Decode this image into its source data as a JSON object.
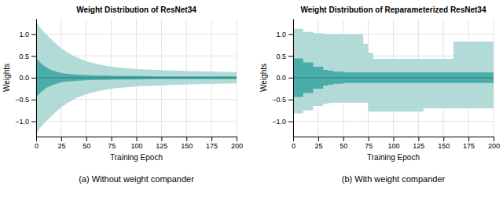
{
  "chart_data": [
    {
      "type": "area",
      "title": "Weight Distribution of ResNet34",
      "x_label": "Training Epoch",
      "y_label": "Weights",
      "annotations": [
        "(a) Without weight compander"
      ],
      "xlim": [
        0,
        200
      ],
      "ylim": [
        -1.35,
        1.35
      ],
      "xticks": [
        0,
        25,
        50,
        75,
        100,
        125,
        150,
        175,
        200
      ],
      "yticks": [
        {
          "value": -1.0,
          "label": "−1.0"
        },
        {
          "value": -0.5,
          "label": "−0.5"
        },
        {
          "value": 0.0,
          "label": "0.0"
        },
        0.5,
        {
          "value": 1.0,
          "label": "1.0"
        }
      ],
      "grid": true,
      "x": [
        0,
        1,
        2,
        3,
        5,
        7,
        10,
        13,
        17,
        20,
        25,
        30,
        35,
        40,
        50,
        60,
        70,
        80,
        90,
        100,
        120,
        140,
        160,
        180,
        200
      ],
      "series": [
        {
          "type": "area",
          "color": "#b2dbd8",
          "values": [
            1.28,
            1.25,
            1.22,
            1.18,
            1.12,
            1.07,
            1.0,
            0.93,
            0.84,
            0.78,
            0.68,
            0.6,
            0.53,
            0.47,
            0.38,
            0.32,
            0.27,
            0.24,
            0.22,
            0.2,
            0.18,
            0.16,
            0.15,
            0.14,
            0.13
          ],
          "lower": [
            -1.28,
            -1.25,
            -1.22,
            -1.18,
            -1.12,
            -1.07,
            -1.0,
            -0.93,
            -0.84,
            -0.78,
            -0.68,
            -0.6,
            -0.53,
            -0.47,
            -0.38,
            -0.32,
            -0.27,
            -0.24,
            -0.22,
            -0.2,
            -0.18,
            -0.16,
            -0.15,
            -0.14,
            -0.13
          ]
        },
        {
          "type": "area",
          "color": "#4aadaa",
          "values": [
            0.44,
            0.42,
            0.4,
            0.37,
            0.33,
            0.29,
            0.24,
            0.2,
            0.16,
            0.14,
            0.11,
            0.09,
            0.08,
            0.07,
            0.06,
            0.05,
            0.05,
            0.04,
            0.04,
            0.04,
            0.03,
            0.03,
            0.03,
            0.03,
            0.03
          ],
          "lower": [
            -0.44,
            -0.42,
            -0.4,
            -0.37,
            -0.33,
            -0.29,
            -0.24,
            -0.2,
            -0.16,
            -0.14,
            -0.11,
            -0.09,
            -0.08,
            -0.07,
            -0.06,
            -0.05,
            -0.05,
            -0.04,
            -0.04,
            -0.04,
            -0.03,
            -0.03,
            -0.03,
            -0.03,
            -0.03
          ]
        },
        {
          "type": "line",
          "color": "#2a7a78",
          "values": [
            0.0,
            0.0,
            0.0,
            0.0,
            0.0,
            0.0,
            0.0,
            0.0,
            0.0,
            0.0,
            0.0,
            0.0,
            0.0,
            0.0,
            0.0,
            0.0,
            0.0,
            0.0,
            0.0,
            0.0,
            0.0,
            0.0,
            0.0,
            0.0,
            0.0
          ]
        }
      ]
    },
    {
      "type": "area",
      "title": "Weight Distribution of Reparameterized ResNet34",
      "x_label": "Training Epoch",
      "y_label": "Weights",
      "annotations": [
        "(b) With weight compander"
      ],
      "xlim": [
        0,
        200
      ],
      "ylim": [
        -1.35,
        1.35
      ],
      "xticks": [
        0,
        25,
        50,
        75,
        100,
        125,
        150,
        175,
        200
      ],
      "yticks": [
        {
          "value": -1.0,
          "label": "−1.0"
        },
        {
          "value": -0.5,
          "label": "−0.5"
        },
        {
          "value": 0.0,
          "label": "0.0"
        },
        0.5,
        {
          "value": 1.0,
          "label": "1.0"
        }
      ],
      "grid": true,
      "line_style": "steps",
      "x": [
        0,
        10,
        20,
        30,
        35,
        40,
        50,
        55,
        60,
        70,
        75,
        80,
        90,
        100,
        110,
        120,
        125,
        130,
        140,
        150,
        155,
        160,
        170,
        180,
        190,
        200
      ],
      "series": [
        {
          "type": "area",
          "color": "#b2dbd8",
          "values": [
            1.12,
            1.05,
            1.02,
            1.0,
            1.0,
            1.0,
            1.0,
            1.0,
            1.0,
            0.78,
            0.57,
            0.43,
            0.43,
            0.43,
            0.43,
            0.43,
            0.43,
            0.43,
            0.43,
            0.43,
            0.43,
            0.83,
            0.83,
            0.83,
            0.83,
            0.83
          ],
          "lower": [
            -0.82,
            -0.75,
            -0.65,
            -0.6,
            -0.58,
            -0.57,
            -0.57,
            -0.57,
            -0.57,
            -0.57,
            -0.78,
            -0.78,
            -0.78,
            -0.78,
            -0.78,
            -0.78,
            -0.78,
            -0.7,
            -0.7,
            -0.7,
            -0.7,
            -0.7,
            -0.7,
            -0.7,
            -0.7,
            -0.7
          ]
        },
        {
          "type": "area",
          "color": "#4aadaa",
          "values": [
            0.44,
            0.35,
            0.25,
            0.18,
            0.16,
            0.14,
            0.12,
            0.12,
            0.12,
            0.12,
            0.12,
            0.12,
            0.12,
            0.12,
            0.12,
            0.12,
            0.12,
            0.12,
            0.12,
            0.12,
            0.12,
            0.12,
            0.12,
            0.12,
            0.12,
            0.12
          ],
          "lower": [
            -0.44,
            -0.35,
            -0.25,
            -0.18,
            -0.16,
            -0.14,
            -0.12,
            -0.12,
            -0.12,
            -0.12,
            -0.12,
            -0.12,
            -0.12,
            -0.12,
            -0.12,
            -0.12,
            -0.12,
            -0.12,
            -0.12,
            -0.12,
            -0.12,
            -0.12,
            -0.12,
            -0.12,
            -0.12,
            -0.12
          ]
        },
        {
          "type": "line",
          "color": "#2a7a78",
          "values": [
            0.0,
            0.0,
            0.0,
            0.0,
            0.0,
            0.0,
            0.0,
            0.0,
            0.0,
            0.0,
            0.0,
            0.0,
            0.0,
            0.0,
            0.0,
            0.0,
            0.0,
            0.0,
            0.0,
            0.0,
            0.0,
            0.0,
            0.0,
            0.0,
            0.0,
            0.0
          ]
        }
      ]
    }
  ]
}
